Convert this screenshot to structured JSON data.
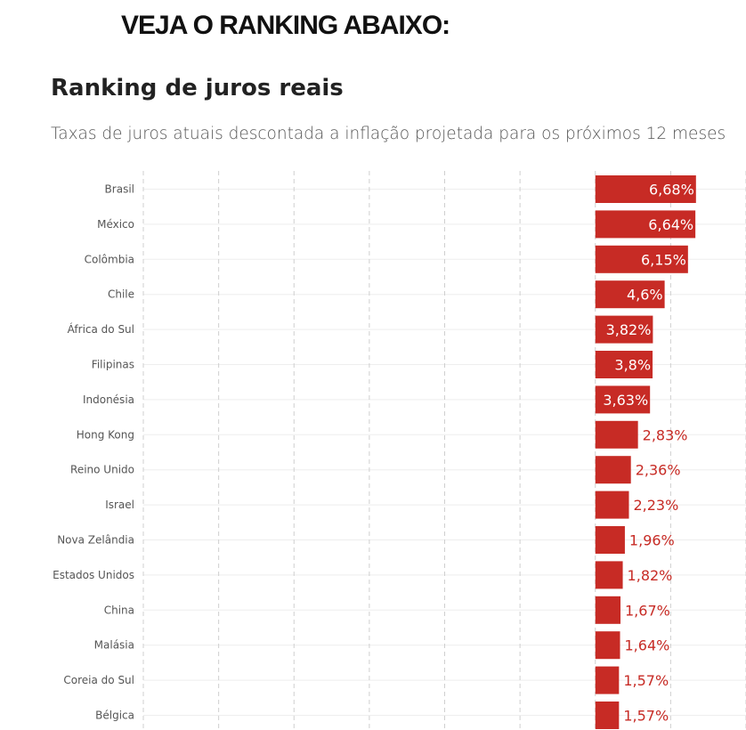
{
  "heading": "VEJA O RANKING ABAIXO:",
  "title": "Ranking de juros reais",
  "subtitle": "Taxas de juros atuais descontada a inflação projetada para os próximos 12 meses",
  "colors": {
    "bar": "#c72b25",
    "label_outside": "#c72b25",
    "label_inside": "#ffffff",
    "grid": "#cfcfcf",
    "row_line": "#eeeeee",
    "category_text": "#555555"
  },
  "chart_data": {
    "type": "bar",
    "orientation": "horizontal",
    "categories": [
      "Brasil",
      "México",
      "Colômbia",
      "Chile",
      "África do Sul",
      "Filipinas",
      "Indonésia",
      "Hong Kong",
      "Reino Unido",
      "Israel",
      "Nova Zelândia",
      "Estados Unidos",
      "China",
      "Malásia",
      "Coreia do Sul",
      "Bélgica"
    ],
    "values": [
      6.68,
      6.64,
      6.15,
      4.6,
      3.82,
      3.8,
      3.63,
      2.83,
      2.36,
      2.23,
      1.96,
      1.82,
      1.67,
      1.64,
      1.57,
      1.57
    ],
    "value_labels": [
      "6,68%",
      "6,64%",
      "6,15%",
      "4,6%",
      "3,82%",
      "3,8%",
      "3,63%",
      "2,83%",
      "2,36%",
      "2,23%",
      "1,96%",
      "1,82%",
      "1,67%",
      "1,64%",
      "1,57%",
      "1,57%"
    ],
    "unit": "%",
    "xlim": [
      -30,
      10
    ],
    "x_grid_step": 5,
    "grid": true,
    "legend": false,
    "title": "Ranking de juros reais",
    "subtitle": "Taxas de juros atuais descontada a inflação projetada para os próximos 12 meses",
    "xlabel": "",
    "ylabel": ""
  }
}
